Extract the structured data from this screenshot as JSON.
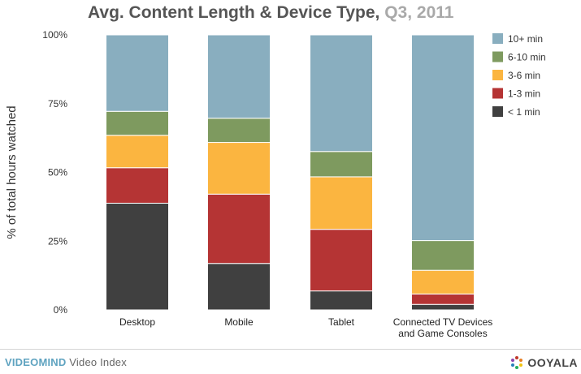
{
  "chart_data": {
    "type": "bar",
    "stacked": true,
    "title": "Avg. Content Length & Device Type,",
    "subtitle": "Q3, 2011",
    "xlabel": "",
    "ylabel": "% of total hours watched",
    "ylim": [
      0,
      100
    ],
    "yticks": [
      "0%",
      "25%",
      "50%",
      "75%",
      "100%"
    ],
    "ytick_values": [
      0,
      25,
      50,
      75,
      100
    ],
    "grid": false,
    "legend_position": "right",
    "categories": [
      [
        "Desktop"
      ],
      [
        "Mobile"
      ],
      [
        "Tablet"
      ],
      [
        "Connected TV Devices",
        "and Game Consoles"
      ]
    ],
    "series": [
      {
        "name": "< 1 min",
        "color": "#404040",
        "values": [
          38.8,
          16.9,
          6.9,
          2.0
        ]
      },
      {
        "name": "1-3 min",
        "color": "#b53434",
        "values": [
          12.9,
          25.2,
          22.4,
          3.8
        ]
      },
      {
        "name": "3-6 min",
        "color": "#fbb540",
        "values": [
          11.8,
          18.8,
          19.1,
          8.6
        ]
      },
      {
        "name": "6-10 min",
        "color": "#7e9a5f",
        "values": [
          8.7,
          8.8,
          9.2,
          10.8
        ]
      },
      {
        "name": "10+ min",
        "color": "#89aebf",
        "values": [
          27.8,
          30.3,
          42.4,
          74.8
        ]
      }
    ],
    "legend_order": [
      "10+ min",
      "6-10 min",
      "3-6 min",
      "1-3 min",
      "< 1 min"
    ]
  },
  "footer": {
    "brand": "VIDEOMIND",
    "index_label": "Video Index",
    "company": "OOYALA"
  }
}
